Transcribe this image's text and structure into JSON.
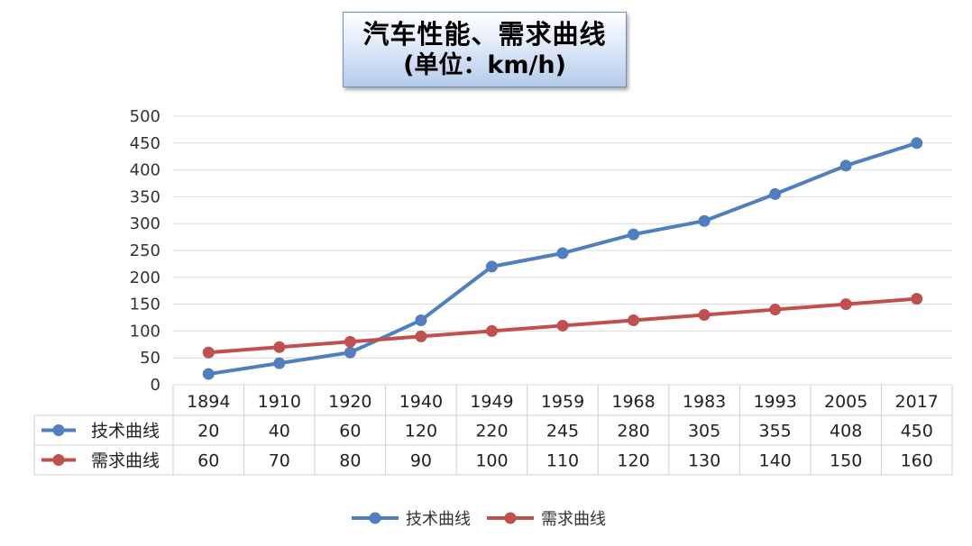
{
  "title": {
    "line1": "汽车性能、需求曲线",
    "line2": "(单位：km/h)"
  },
  "colors": {
    "series1": "#4f7fbf",
    "series2": "#c0504d",
    "grid": "#d9d9d9",
    "table_border": "#cfcfcf"
  },
  "chart_data": {
    "type": "line",
    "title": "汽车性能、需求曲线 (单位：km/h)",
    "categories": [
      "1894",
      "1910",
      "1920",
      "1940",
      "1949",
      "1959",
      "1968",
      "1983",
      "1993",
      "2005",
      "2017"
    ],
    "series": [
      {
        "name": "技术曲线",
        "color": "#4f7fbf",
        "values": [
          20,
          40,
          60,
          120,
          220,
          245,
          280,
          305,
          355,
          408,
          450
        ]
      },
      {
        "name": "需求曲线",
        "color": "#c0504d",
        "values": [
          60,
          70,
          80,
          90,
          100,
          110,
          120,
          130,
          140,
          150,
          160
        ]
      }
    ],
    "y_ticks": [
      "0",
      "50",
      "100",
      "150",
      "200",
      "250",
      "300",
      "350",
      "400",
      "450",
      "500"
    ],
    "ylim": [
      0,
      500
    ],
    "grid": true,
    "data_table": true,
    "legend_position": "bottom-center",
    "xlabel": "",
    "ylabel": ""
  }
}
